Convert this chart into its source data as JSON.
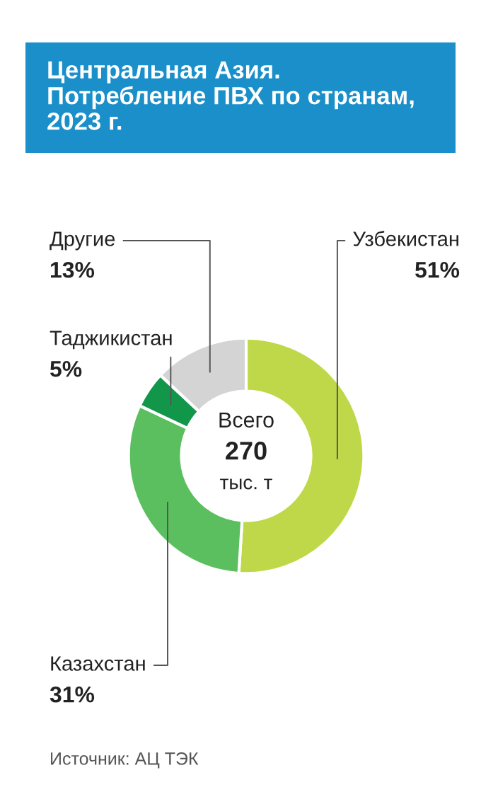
{
  "chart_data": {
    "type": "donut",
    "title": "Центральная Азия.\nПотребление ПВХ по странам,\n2023 г.",
    "categories": [
      "Узбекистан",
      "Казахстан",
      "Таджикистан",
      "Другие"
    ],
    "values": [
      51,
      31,
      5,
      13
    ],
    "value_labels": [
      "51%",
      "31%",
      "5%",
      "13%"
    ],
    "colors": [
      "#bfd84a",
      "#5cbf5f",
      "#12964a",
      "#d4d4d4"
    ],
    "annotations": [
      "Всего",
      "270",
      "тыс. т",
      "Источник: АЦ ТЭК"
    ],
    "legend": false
  }
}
